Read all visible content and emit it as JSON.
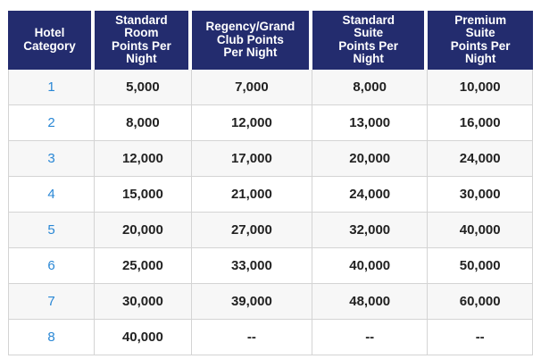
{
  "colors": {
    "header-bg": "#232c6e",
    "header-text": "#ffffff",
    "link-blue": "#2987d5",
    "body-text": "#222222",
    "zebra": "#f7f7f7",
    "border": "#d4d4d4"
  },
  "table": {
    "columns": [
      "Hotel\nCategory",
      "Standard\nRoom\nPoints Per\nNight",
      "Regency/Grand\nClub Points\nPer Night",
      "Standard\nSuite\nPoints Per\nNight",
      "Premium\nSuite\nPoints Per\nNight"
    ],
    "rows": [
      {
        "category": "1",
        "values": [
          "5,000",
          "7,000",
          "8,000",
          "10,000"
        ]
      },
      {
        "category": "2",
        "values": [
          "8,000",
          "12,000",
          "13,000",
          "16,000"
        ]
      },
      {
        "category": "3",
        "values": [
          "12,000",
          "17,000",
          "20,000",
          "24,000"
        ]
      },
      {
        "category": "4",
        "values": [
          "15,000",
          "21,000",
          "24,000",
          "30,000"
        ]
      },
      {
        "category": "5",
        "values": [
          "20,000",
          "27,000",
          "32,000",
          "40,000"
        ]
      },
      {
        "category": "6",
        "values": [
          "25,000",
          "33,000",
          "40,000",
          "50,000"
        ]
      },
      {
        "category": "7",
        "values": [
          "30,000",
          "39,000",
          "48,000",
          "60,000"
        ]
      },
      {
        "category": "8",
        "values": [
          "40,000",
          "--",
          "--",
          "--"
        ]
      }
    ]
  }
}
